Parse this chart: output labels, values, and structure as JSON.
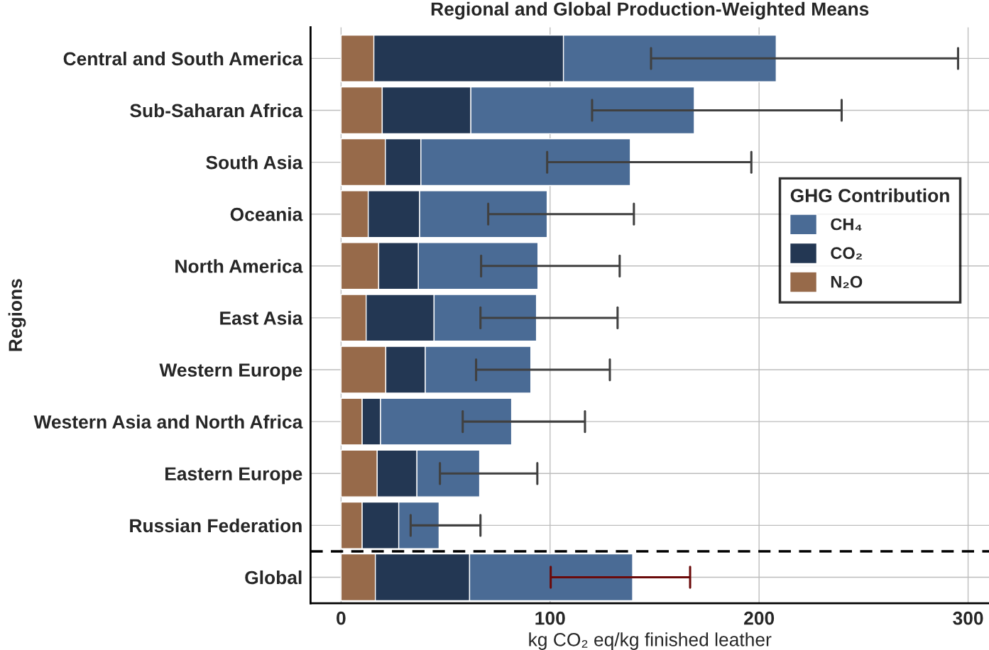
{
  "chart_data": {
    "type": "bar",
    "orientation": "horizontal",
    "stacked": true,
    "title": "Regional and Global Production-Weighted Means",
    "xlabel": "kg CO₂ eq/kg finished leather",
    "ylabel": "Regions",
    "legend_title": "GHG Contribution",
    "categories": [
      "Central and South America",
      "Sub-Saharan Africa",
      "South Asia",
      "Oceania",
      "North America",
      "East Asia",
      "Western Europe",
      "Western Asia and North Africa",
      "Eastern Europe",
      "Russian Federation",
      "Global"
    ],
    "series": [
      {
        "name": "N₂O",
        "color": "#976a4a",
        "values": [
          15.7,
          19.7,
          21.2,
          13.0,
          18.0,
          12.0,
          21.4,
          10.1,
          17.3,
          10.1,
          16.4
        ]
      },
      {
        "name": "CO₂",
        "color": "#233753",
        "values": [
          90.7,
          42.4,
          17.0,
          24.6,
          19.0,
          32.5,
          18.9,
          8.8,
          19.0,
          17.5,
          45.1
        ]
      },
      {
        "name": "CH₄",
        "color": "#4a6b95",
        "values": [
          101.8,
          106.9,
          100.2,
          61.0,
          57.2,
          49.0,
          50.5,
          62.7,
          30.0,
          19.3,
          78.0
        ],
        "errors": [
          [
            148.3,
            295.2
          ],
          [
            120.1,
            239.5
          ],
          [
            98.6,
            196.3
          ],
          [
            70.4,
            140.1
          ],
          [
            67.0,
            133.3
          ],
          [
            66.7,
            132.3
          ],
          [
            64.6,
            128.6
          ],
          [
            58.2,
            116.7
          ],
          [
            47.3,
            93.9
          ],
          [
            33.3,
            66.7
          ],
          [
            100.3,
            167.0
          ]
        ]
      }
    ],
    "xlim": [
      -14.6,
      310
    ],
    "xticks": [
      0,
      100,
      200,
      300
    ],
    "grid": true,
    "legend": "right"
  }
}
